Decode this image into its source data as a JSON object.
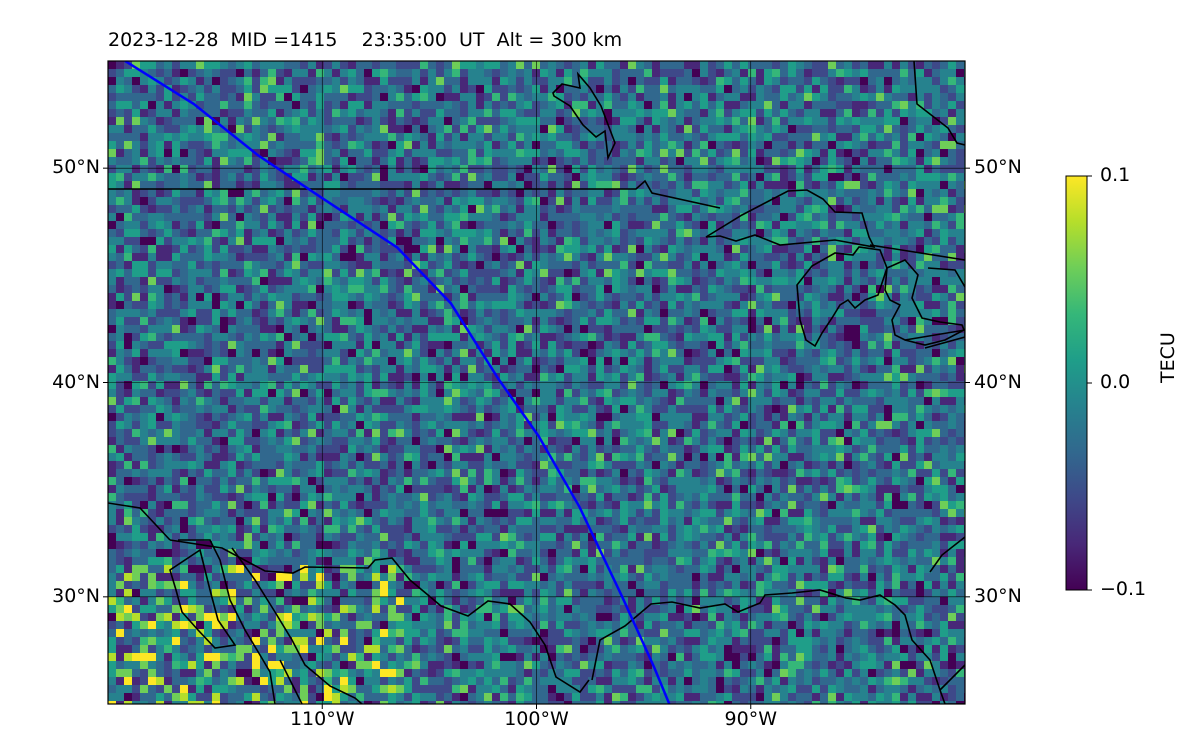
{
  "title": "2023-12-28  MID =1415    23:35:00  UT  Alt = 300 km",
  "map": {
    "lon_range": [
      -120,
      -80
    ],
    "lat_range": [
      25,
      55
    ],
    "lat_ticks": [
      {
        "value": 50,
        "label": "50°N"
      },
      {
        "value": 40,
        "label": "40°N"
      },
      {
        "value": 30,
        "label": "30°N"
      }
    ],
    "lon_ticks": [
      {
        "value": -110,
        "label": "110°W"
      },
      {
        "value": -100,
        "label": "100°W"
      },
      {
        "value": -90,
        "label": "90°W"
      }
    ],
    "grid": true,
    "background_color": "#2a7f8e",
    "track_color": "#0000ff",
    "track": [
      [
        -119.2,
        55
      ],
      [
        -116,
        53
      ],
      [
        -113,
        50.6
      ],
      [
        -110,
        48.6
      ],
      [
        -106.5,
        46.3
      ],
      [
        -104,
        43.7
      ],
      [
        -101.8,
        40.2
      ],
      [
        -99.9,
        37.5
      ],
      [
        -98,
        34.2
      ],
      [
        -96,
        30
      ],
      [
        -94.5,
        26.7
      ],
      [
        -93.8,
        25
      ]
    ],
    "coastline_color": "#000000"
  },
  "colorbar": {
    "label": "TECU",
    "min": -0.1,
    "max": 0.1,
    "ticks": [
      {
        "value": 0.1,
        "label": "0.1"
      },
      {
        "value": 0.0,
        "label": "0.0"
      },
      {
        "value": -0.1,
        "label": "−0.1"
      }
    ],
    "colormap": [
      "#440154",
      "#482878",
      "#3e4989",
      "#31688e",
      "#26828e",
      "#1f9e89",
      "#35b779",
      "#6ece58",
      "#b5de2b",
      "#fde725"
    ]
  }
}
